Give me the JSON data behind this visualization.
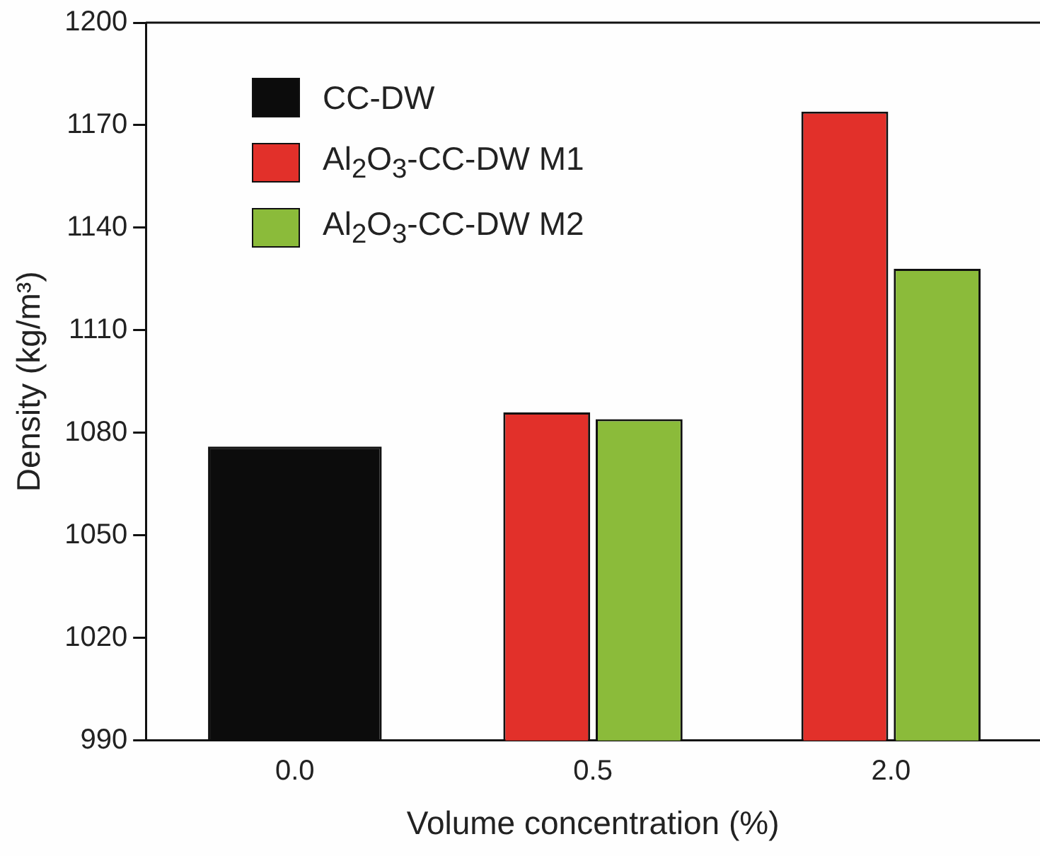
{
  "chart_data": {
    "type": "bar",
    "xlabel": "Volume concentration (%)",
    "ylabel": "Density (kg/m³)",
    "categories": [
      "0.0",
      "0.5",
      "2.0"
    ],
    "series": [
      {
        "name": "CC-DW",
        "color": "#0c0c0c",
        "values": [
          1076,
          null,
          null
        ]
      },
      {
        "name": "Al$_{2}$O$_{3}$-CC-DW M1",
        "color": "#e2302a",
        "values": [
          null,
          1086,
          1174
        ]
      },
      {
        "name": "Al$_{2}$O$_{3}$-CC-DW M2",
        "color": "#8bbb3a",
        "values": [
          null,
          1084,
          1128
        ]
      }
    ],
    "ylim": [
      990,
      1200
    ],
    "yticks": [
      990,
      1020,
      1050,
      1080,
      1110,
      1140,
      1170,
      1200
    ],
    "grid": false,
    "legend": "top left"
  }
}
